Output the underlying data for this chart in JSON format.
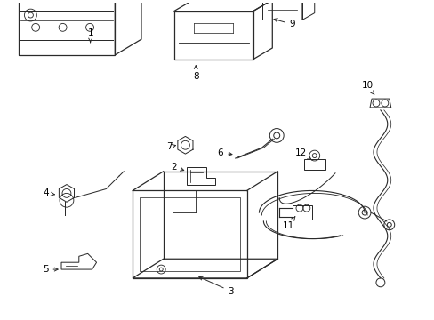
{
  "background_color": "#ffffff",
  "line_color": "#2a2a2a",
  "label_color": "#000000",
  "figsize": [
    4.89,
    3.6
  ],
  "dpi": 100
}
